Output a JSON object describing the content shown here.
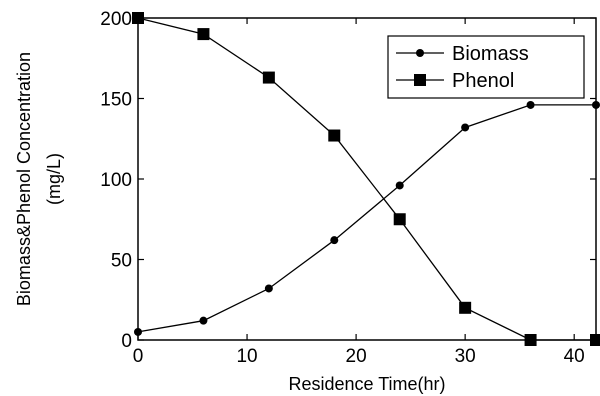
{
  "chart_data": {
    "type": "line",
    "title": "",
    "xlabel": "Residence Time(hr)",
    "ylabel": [
      "Biomass&Phenol Concentration",
      "(mg/L)"
    ],
    "xlim": [
      0,
      42
    ],
    "ylim": [
      0,
      200
    ],
    "xticks": [
      0,
      10,
      20,
      30,
      40
    ],
    "yticks": [
      0,
      50,
      100,
      150,
      200
    ],
    "grid": false,
    "legend_position": "top-right",
    "series": [
      {
        "name": "Biomass",
        "marker": "circle",
        "color": "#000000",
        "x": [
          0,
          6,
          12,
          18,
          24,
          30,
          36,
          42
        ],
        "y": [
          5,
          12,
          32,
          62,
          96,
          132,
          146,
          146
        ]
      },
      {
        "name": "Phenol",
        "marker": "square",
        "color": "#000000",
        "x": [
          0,
          6,
          12,
          18,
          24,
          30,
          36,
          42
        ],
        "y": [
          200,
          190,
          163,
          127,
          75,
          20,
          0,
          0
        ]
      }
    ]
  }
}
